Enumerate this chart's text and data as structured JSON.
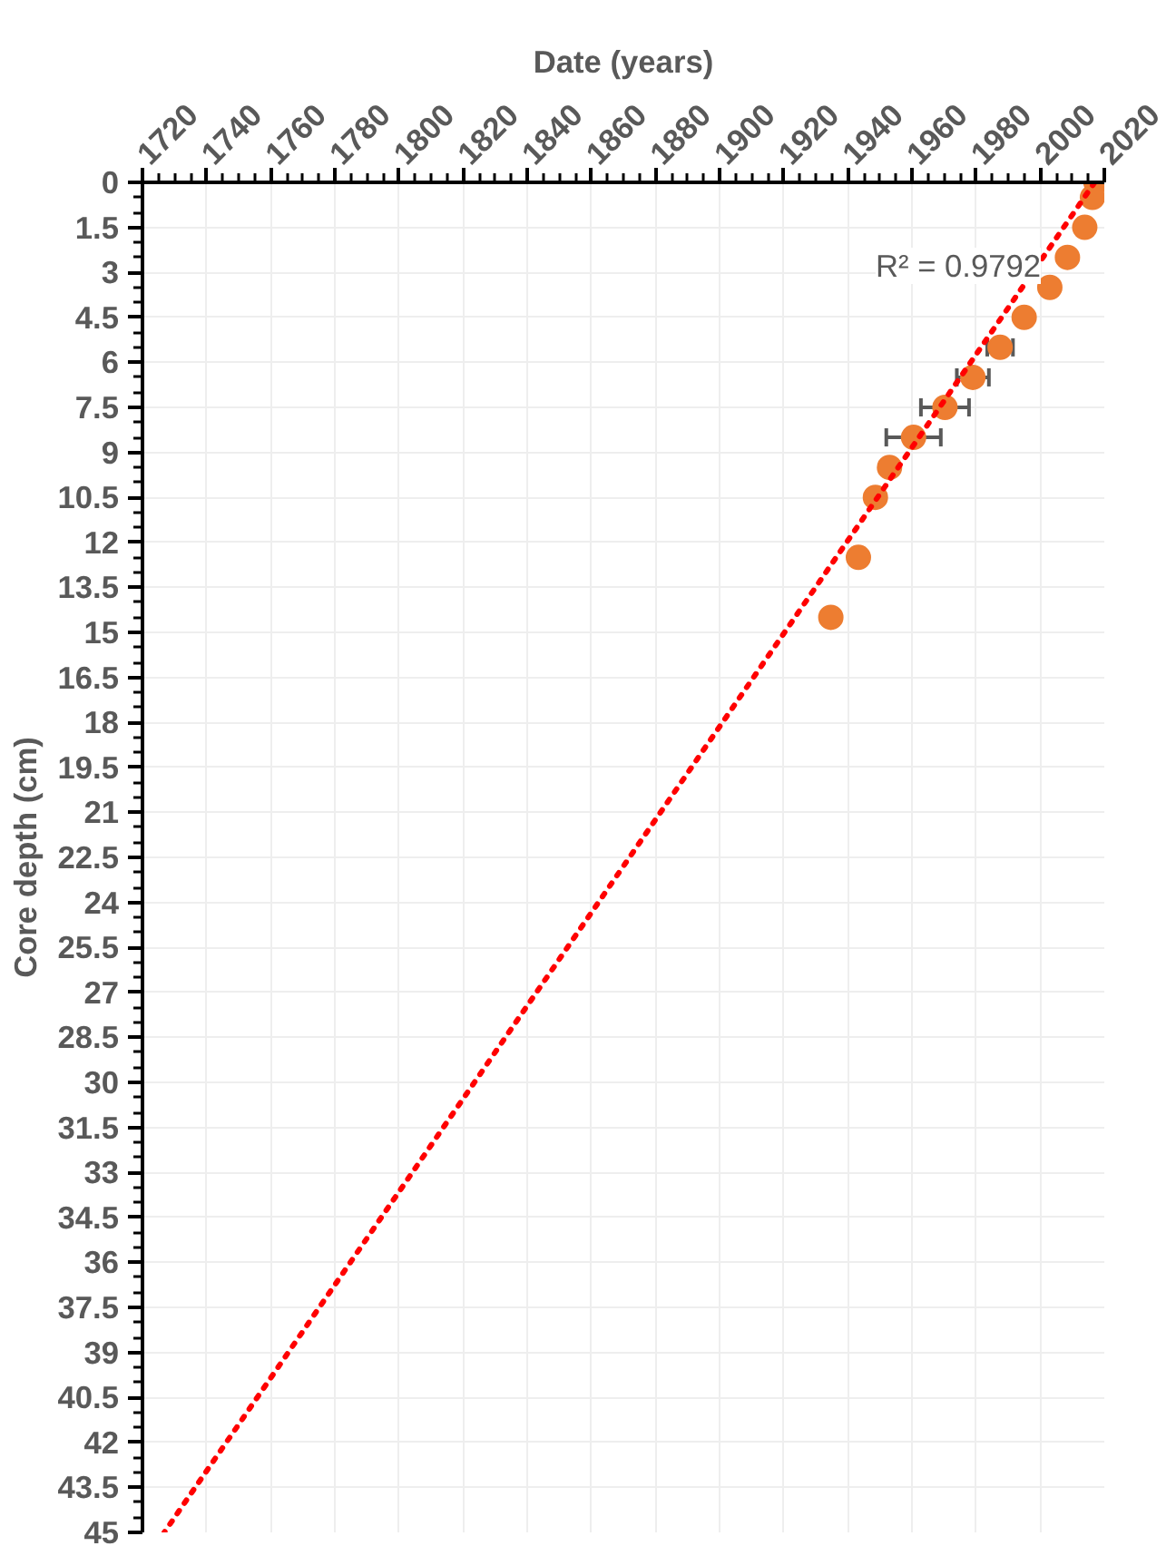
{
  "chart_data": {
    "type": "scatter",
    "xlabel": "Date (years)",
    "ylabel": "Core depth (cm)",
    "annotations": [
      "R² = 0.9792"
    ],
    "xlim": [
      1720,
      2020
    ],
    "xticks": [
      1720,
      1740,
      1760,
      1780,
      1800,
      1820,
      1840,
      1860,
      1880,
      1900,
      1920,
      1940,
      1960,
      1980,
      2000,
      2020
    ],
    "ylim": [
      45,
      0
    ],
    "yticks": [
      0,
      1.5,
      3,
      4.5,
      6,
      7.5,
      9,
      10.5,
      12,
      13.5,
      15,
      16.5,
      18,
      19.5,
      21,
      22.5,
      24,
      25.5,
      27,
      28.5,
      30,
      31.5,
      33,
      34.5,
      36,
      37.5,
      39,
      40.5,
      42,
      43.5,
      45
    ],
    "grid": true,
    "series": [
      {
        "type": "scatter",
        "color": "#ed7d31",
        "marker": "circle",
        "x": [
          2017.4,
          2016.3,
          2013.9,
          2008.5,
          2003,
          1995,
          1987.5,
          1979,
          1970.3,
          1960.5,
          1953,
          1948.6,
          1943.3,
          1934.7
        ],
        "values": [
          0,
          0.5,
          1.5,
          2.5,
          3.5,
          4.5,
          5.5,
          6.5,
          7.5,
          8.5,
          9.5,
          10.5,
          12.5,
          14.5
        ],
        "xerrors": [
          null,
          null,
          null,
          null,
          null,
          null,
          4,
          5,
          7.5,
          8.5,
          null,
          null,
          null,
          null
        ]
      },
      {
        "type": "line",
        "color": "#ff0000",
        "line_style": "dotted",
        "marker": "none",
        "x": [
          2017,
          1726.8
        ],
        "values": [
          0,
          45
        ]
      }
    ]
  }
}
